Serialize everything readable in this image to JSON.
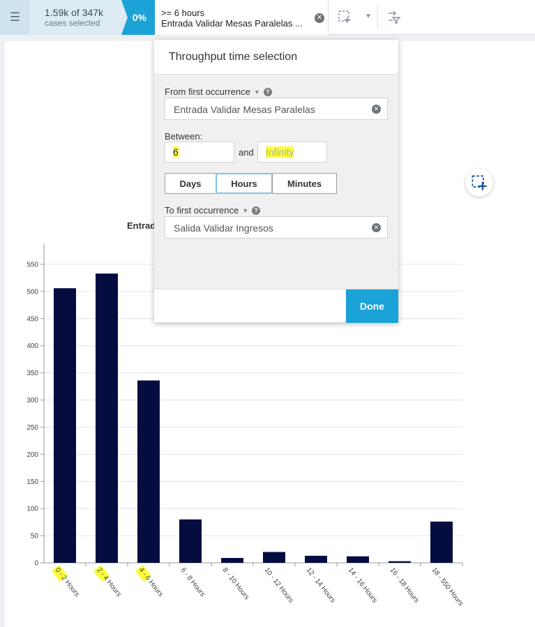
{
  "toolbar": {
    "menu_icon": "hamburger-icon",
    "cases_count": "1.59k of 347k",
    "cases_label": "cases selected",
    "percent": "0%",
    "filter_condition": ">= 6 hours",
    "filter_activity": "Entrada Validar Mesas Paralelas ...",
    "clear_icon": "clear-icon",
    "select_icon": "selection-add-icon",
    "dropdown_icon": "chevron-down-icon",
    "filter_icon": "filter-flip-icon"
  },
  "chart": {
    "title_fragment": "Entrad",
    "floating_button_icon": "selection-add-icon"
  },
  "chart_data": {
    "type": "bar",
    "categories": [
      "0 - 2 Hours",
      "2 - 4 Hours",
      "4 - 6 Hours",
      "6 - 8 Hours",
      "8 - 10 Hours",
      "10 - 12 Hours",
      "12 - 14 Hours",
      "14 - 16 Hours",
      "16 - 18 Hours",
      "18 - 550 Hours"
    ],
    "values": [
      506,
      533,
      336,
      80,
      9,
      20,
      13,
      12,
      3,
      76
    ],
    "y_ticks": [
      0,
      50,
      100,
      150,
      200,
      250,
      300,
      350,
      400,
      450,
      500,
      550
    ],
    "ylim": [
      0,
      550
    ],
    "grid": true,
    "bar_color": "#050c40",
    "highlighted_categories": [
      0,
      1,
      2
    ]
  },
  "popup": {
    "title": "Throughput time selection",
    "from_label": "From first occurrence",
    "from_value": "Entrada Validar Mesas Paralelas",
    "between_label": "Between:",
    "min_value": "6",
    "and_label": "and",
    "max_placeholder": "Infinity",
    "units": [
      "Days",
      "Hours",
      "Minutes"
    ],
    "selected_unit": "Hours",
    "to_label": "To first occurrence",
    "to_value": "Salida Validar Ingresos",
    "done_label": "Done",
    "highlight_color": "#fcfc3c",
    "accent_color": "#1ba2d6"
  }
}
